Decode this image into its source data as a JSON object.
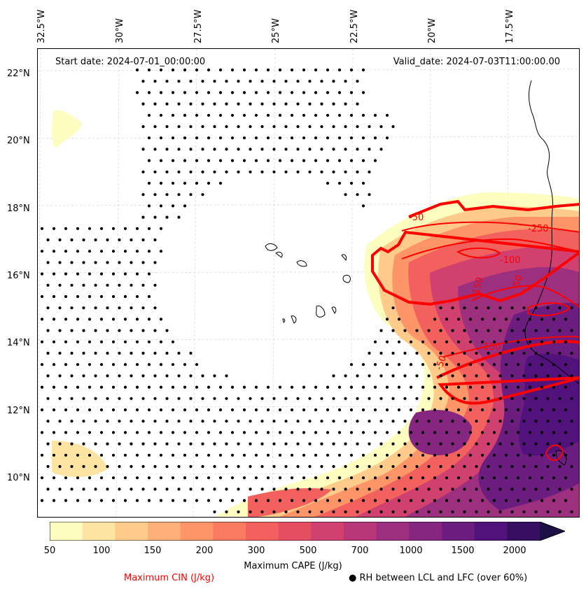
{
  "map": {
    "start_date": "Start date: 2024-07-01_00:00:00",
    "valid_date": "Valid_date: 2024-07-03T11:00:00.00",
    "lon_labels": [
      "32.5°W",
      "30°W",
      "27.5°W",
      "25°W",
      "22.5°W",
      "20°W",
      "17.5°W"
    ],
    "lat_labels": [
      "22°N",
      "20°N",
      "18°N",
      "16°N",
      "14°N",
      "12°N",
      "10°N"
    ],
    "cin_contours": [
      "-50",
      "-250",
      "-100",
      "-150",
      "-150",
      "-50",
      "-50"
    ]
  },
  "colorbar": {
    "title": "Maximum CAPE (J/kg)",
    "ticks": [
      "50",
      "100",
      "150",
      "200",
      "300",
      "500",
      "700",
      "1000",
      "1500",
      "2000"
    ],
    "colors": [
      "#fcfdbf",
      "#fde4a3",
      "#fecb8a",
      "#feb078",
      "#fd9568",
      "#fa7b5f",
      "#f2615d",
      "#e44e60",
      "#d0416f",
      "#b73779",
      "#9d2f7f",
      "#852681",
      "#6b1d80",
      "#51127c",
      "#360f61",
      "#1c1044"
    ]
  },
  "legend": {
    "cin_label": "Maximum CIN (J/kg)",
    "rh_label": "● RH between LCL and LFC (over 60%)"
  }
}
